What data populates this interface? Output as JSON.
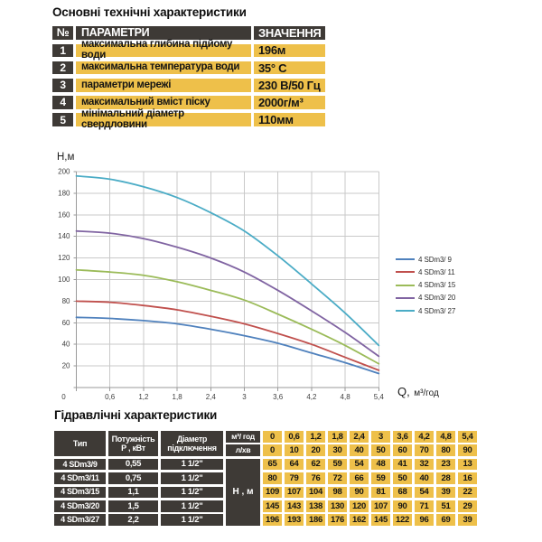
{
  "colors": {
    "amber": "#EEC04A",
    "dark_cell": "#3E3A36",
    "grid": "#C9C9C9",
    "axis": "#9A9A9A",
    "chart_text": "#3F3F3F"
  },
  "top_section": {
    "title": "Основні технічні характеристики",
    "table": {
      "headers": [
        "№",
        "ПАРАМЕТРИ",
        "ЗНАЧЕННЯ"
      ],
      "rows": [
        {
          "num": "1",
          "param": "максимальна глибина підйому води",
          "value": "196м"
        },
        {
          "num": "2",
          "param": "максимальна температура води",
          "value": "35° С"
        },
        {
          "num": "3",
          "param": "параметри мережі",
          "value": "230 В/50 Гц"
        },
        {
          "num": "4",
          "param": "максимальний вміст піску",
          "value": "2000г/м³"
        },
        {
          "num": "5",
          "param": "мінімальний діаметр свердловини",
          "value": "110мм"
        }
      ]
    }
  },
  "chart_data": {
    "type": "line",
    "title": "",
    "ylabel": "Н,м",
    "xlabel": "Q, м³/год",
    "xlabel_q": "Q,",
    "xlabel_unit": "м³/год",
    "x": [
      0,
      0.6,
      1.2,
      1.8,
      2.4,
      3,
      3.6,
      4.2,
      4.8,
      5.4
    ],
    "x_tick_labels": [
      "0",
      "0,6",
      "1,2",
      "1,8",
      "2,4",
      "3",
      "3,6",
      "4,2",
      "4,8",
      "5,4"
    ],
    "xlim": [
      0,
      5.4
    ],
    "ylim": [
      0,
      200
    ],
    "y_ticks": [
      20,
      40,
      60,
      80,
      100,
      120,
      140,
      160,
      180,
      200
    ],
    "grid": true,
    "legend_position": "right",
    "series": [
      {
        "name": "4 SDm3/ 9",
        "color": "#4F81BD",
        "values": [
          65,
          64,
          62,
          59,
          54,
          48,
          41,
          32,
          23,
          13
        ]
      },
      {
        "name": "4 SDm3/ 11",
        "color": "#C0504D",
        "values": [
          80,
          79,
          76,
          72,
          66,
          59,
          50,
          40,
          28,
          16
        ]
      },
      {
        "name": "4 SDm3/ 15",
        "color": "#9BBB59",
        "values": [
          109,
          107,
          104,
          98,
          90,
          81,
          68,
          54,
          39,
          22
        ]
      },
      {
        "name": "4 SDm3/ 20",
        "color": "#8064A2",
        "values": [
          145,
          143,
          138,
          130,
          120,
          107,
          90,
          71,
          51,
          29
        ]
      },
      {
        "name": "4 SDm3/ 27",
        "color": "#4BACC6",
        "values": [
          196,
          193,
          186,
          176,
          162,
          145,
          122,
          96,
          69,
          39
        ]
      }
    ]
  },
  "bottom_section": {
    "title": "Гідравлічні характеристики",
    "table": {
      "type_header": "Тип",
      "power_header": [
        "Потужність",
        "Р , кВт"
      ],
      "diameter_header": [
        "Діаметр",
        "підключення"
      ],
      "flow_unit_m3h": "м³/ год",
      "flow_unit_lmin": "л/хв",
      "head_unit": "Н , м",
      "flow_m3h": [
        "0",
        "0,6",
        "1,2",
        "1,8",
        "2,4",
        "3",
        "3,6",
        "4,2",
        "4,8",
        "5,4"
      ],
      "flow_lmin": [
        "0",
        "10",
        "20",
        "30",
        "40",
        "50",
        "60",
        "70",
        "80",
        "90"
      ],
      "rows": [
        {
          "type": "4 SDm3/9",
          "power": "0,55",
          "diameter": "1 1/2\"",
          "head": [
            "65",
            "64",
            "62",
            "59",
            "54",
            "48",
            "41",
            "32",
            "23",
            "13"
          ]
        },
        {
          "type": "4 SDm3/11",
          "power": "0,75",
          "diameter": "1 1/2\"",
          "head": [
            "80",
            "79",
            "76",
            "72",
            "66",
            "59",
            "50",
            "40",
            "28",
            "16"
          ]
        },
        {
          "type": "4 SDm3/15",
          "power": "1,1",
          "diameter": "1 1/2\"",
          "head": [
            "109",
            "107",
            "104",
            "98",
            "90",
            "81",
            "68",
            "54",
            "39",
            "22"
          ]
        },
        {
          "type": "4 SDm3/20",
          "power": "1,5",
          "diameter": "1 1/2\"",
          "head": [
            "145",
            "143",
            "138",
            "130",
            "120",
            "107",
            "90",
            "71",
            "51",
            "29"
          ]
        },
        {
          "type": "4 SDm3/27",
          "power": "2,2",
          "diameter": "1 1/2\"",
          "head": [
            "196",
            "193",
            "186",
            "176",
            "162",
            "145",
            "122",
            "96",
            "69",
            "39"
          ]
        }
      ]
    }
  }
}
